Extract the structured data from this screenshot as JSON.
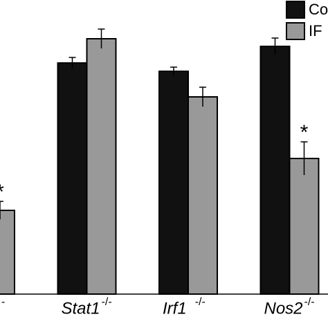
{
  "chart_data": {
    "type": "bar",
    "categories": [
      null,
      "Stat1",
      "Irf1",
      "Nos2"
    ],
    "superscripts": [
      "-",
      "-/-",
      "-/-",
      "-/-"
    ],
    "series": [
      {
        "name": "Co",
        "color": "#111111",
        "values": [
          null,
          334,
          322,
          358
        ],
        "errors": [
          null,
          8,
          6,
          12
        ]
      },
      {
        "name": "IF",
        "color": "#999999",
        "values": [
          121,
          369,
          285,
          196
        ],
        "errors": [
          13,
          14,
          14,
          24
        ]
      }
    ],
    "annotations": [
      {
        "series": 1,
        "index": 0,
        "text": "*"
      },
      {
        "series": 1,
        "index": 3,
        "text": "*"
      }
    ],
    "ylim": [
      0,
      425
    ]
  }
}
